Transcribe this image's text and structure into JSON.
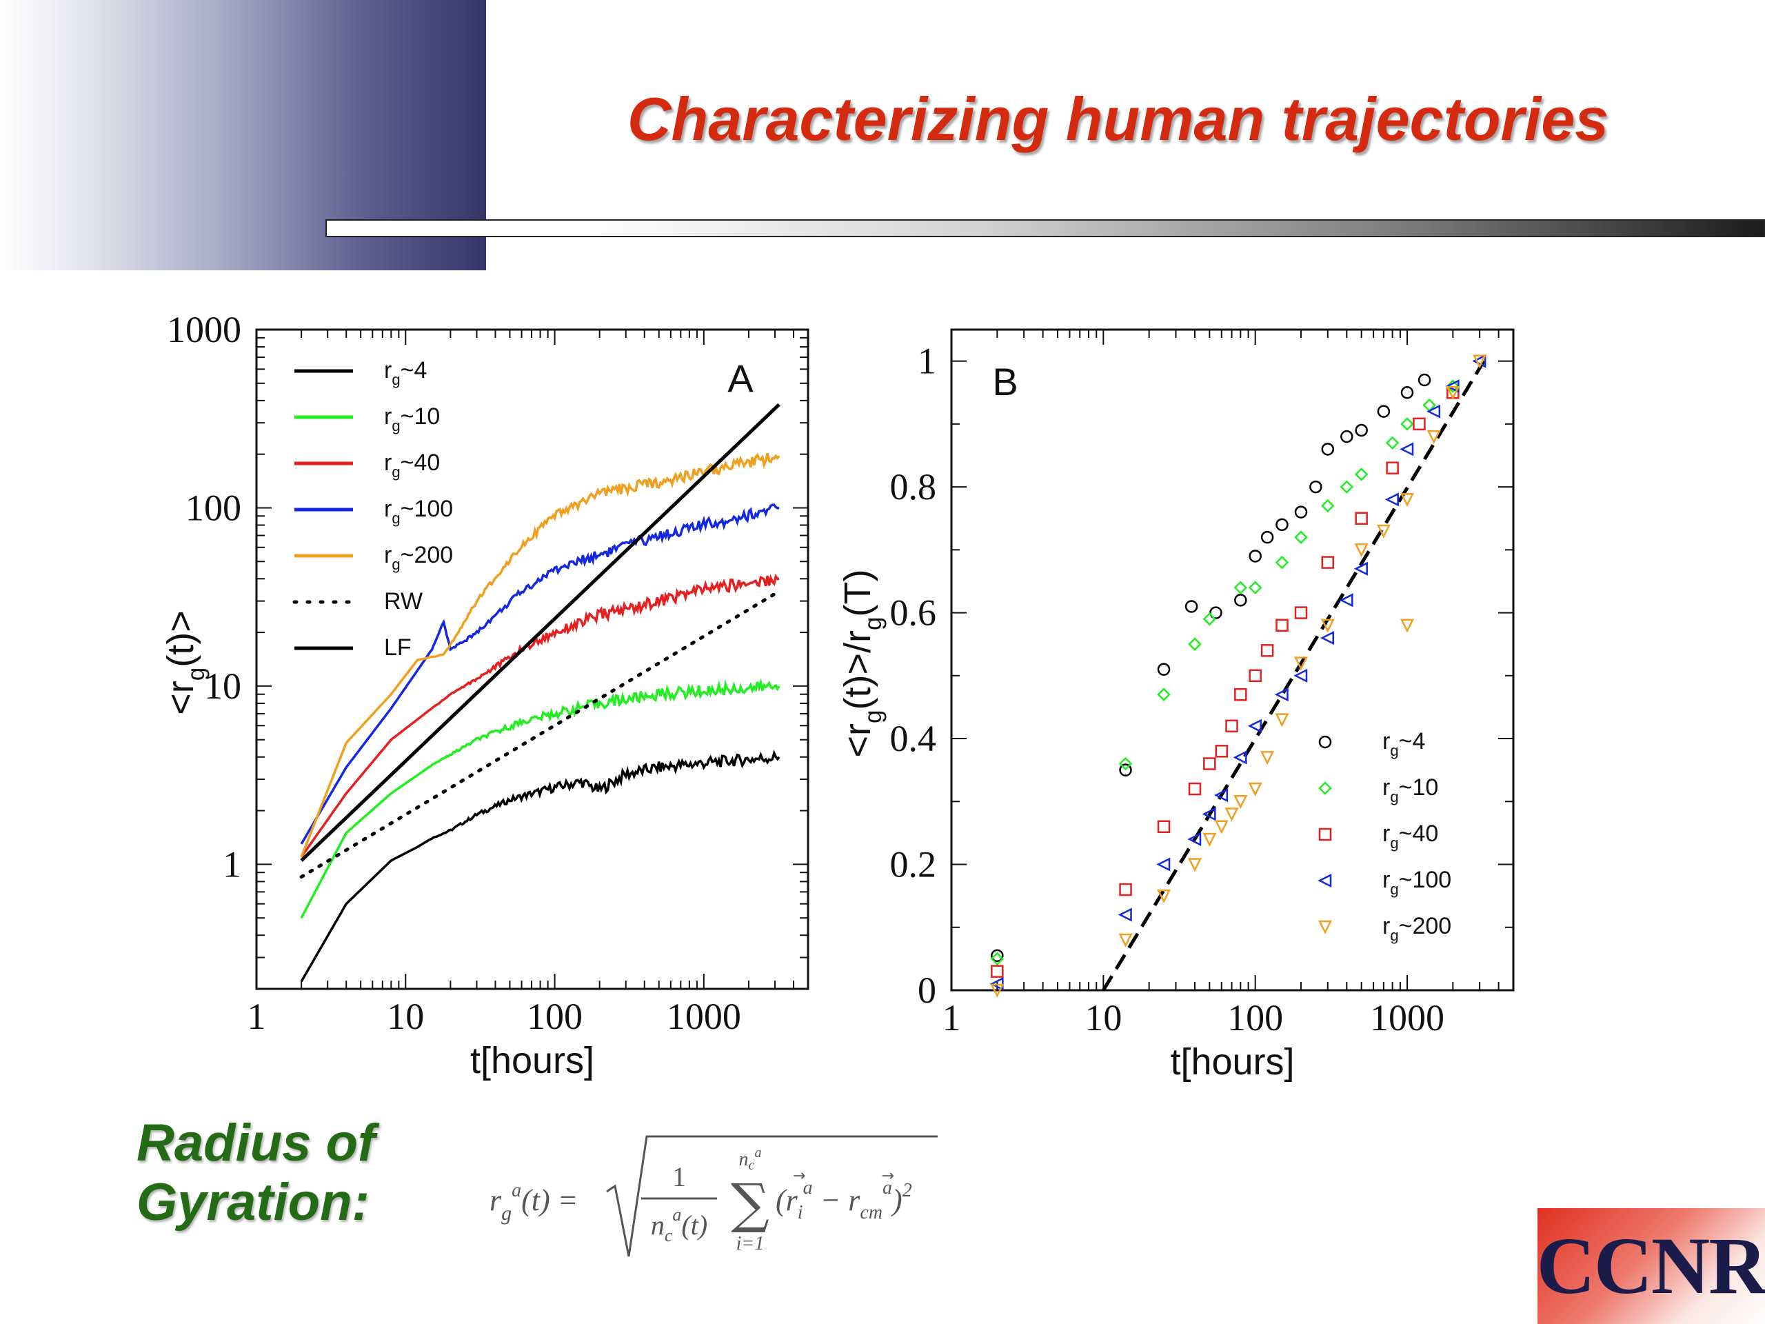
{
  "slide": {
    "title": "Characterizing human trajectories",
    "gyration_label": [
      "Radius of",
      "Gyration:"
    ],
    "logo_text": "CCNR"
  },
  "colors": {
    "title": "#d42a10",
    "gyration": "#246b16",
    "rg4": "#000000",
    "rg10": "#22ee22",
    "rg40": "#e52020",
    "rg100": "#1428e0",
    "rg200": "#f0a020"
  },
  "formula": {
    "lhs": "r_g^a(t) =",
    "fraction_numerator": "1",
    "fraction_denominator": "n_c^a(t)",
    "sum_upper": "n_c^a",
    "sum_lower": "i=1",
    "summand": "(r_i^a − r_cm^a)^2"
  },
  "chart_data": [
    {
      "type": "line",
      "panel_label": "A",
      "xlabel": "t[hours]",
      "ylabel": "<r_g(t)>",
      "xscale": "log",
      "yscale": "log",
      "xlim": [
        1,
        5000
      ],
      "ylim": [
        0.2,
        1000
      ],
      "xticks": [
        1,
        10,
        100,
        1000
      ],
      "xtick_labels": [
        "1",
        "10",
        "100",
        "1000"
      ],
      "yticks": [
        1,
        10,
        100,
        1000
      ],
      "ytick_labels": [
        "1",
        "10",
        "100",
        "1000"
      ],
      "legend_position": "top-left",
      "series": [
        {
          "name": "r_g~4",
          "color": "#000000",
          "style": "noisy",
          "points": [
            [
              2,
              0.22
            ],
            [
              4,
              0.6
            ],
            [
              8,
              1.05
            ],
            [
              12,
              1.25
            ],
            [
              15,
              1.4
            ],
            [
              20,
              1.55
            ],
            [
              30,
              1.9
            ],
            [
              50,
              2.3
            ],
            [
              100,
              2.7
            ],
            [
              150,
              2.9
            ],
            [
              200,
              2.6
            ],
            [
              300,
              3.2
            ],
            [
              500,
              3.5
            ],
            [
              1000,
              3.7
            ],
            [
              3200,
              4
            ]
          ]
        },
        {
          "name": "r_g~10",
          "color": "#22ee22",
          "style": "noisy",
          "points": [
            [
              2,
              0.5
            ],
            [
              4,
              1.5
            ],
            [
              8,
              2.5
            ],
            [
              15,
              3.6
            ],
            [
              30,
              5
            ],
            [
              60,
              6.3
            ],
            [
              100,
              7
            ],
            [
              200,
              8
            ],
            [
              500,
              9
            ],
            [
              1000,
              9.4
            ],
            [
              3200,
              10
            ]
          ]
        },
        {
          "name": "r_g~40",
          "color": "#e52020",
          "style": "noisy",
          "points": [
            [
              2,
              1.1
            ],
            [
              4,
              2.5
            ],
            [
              8,
              5
            ],
            [
              15,
              7.5
            ],
            [
              20,
              9
            ],
            [
              30,
              11
            ],
            [
              60,
              16
            ],
            [
              100,
              20
            ],
            [
              200,
              25
            ],
            [
              500,
              30
            ],
            [
              1000,
              35
            ],
            [
              3200,
              40
            ]
          ]
        },
        {
          "name": "r_g~100",
          "color": "#1428e0",
          "style": "noisy",
          "points": [
            [
              2,
              1.3
            ],
            [
              4,
              3.5
            ],
            [
              8,
              7.5
            ],
            [
              15,
              16
            ],
            [
              18,
              23
            ],
            [
              20,
              16
            ],
            [
              25,
              18
            ],
            [
              30,
              20
            ],
            [
              60,
              34
            ],
            [
              100,
              45
            ],
            [
              200,
              55
            ],
            [
              500,
              70
            ],
            [
              1000,
              80
            ],
            [
              3200,
              100
            ]
          ]
        },
        {
          "name": "r_g~200",
          "color": "#f0a020",
          "style": "noisy",
          "points": [
            [
              2,
              1.1
            ],
            [
              4,
              4.8
            ],
            [
              8,
              9
            ],
            [
              12,
              14
            ],
            [
              18,
              15
            ],
            [
              20,
              17
            ],
            [
              30,
              30
            ],
            [
              60,
              62
            ],
            [
              100,
              90
            ],
            [
              200,
              120
            ],
            [
              500,
              140
            ],
            [
              1000,
              160
            ],
            [
              3200,
              195
            ]
          ]
        },
        {
          "name": "RW",
          "color": "#000000",
          "style": "dotted",
          "points": [
            [
              2,
              0.85
            ],
            [
              3200,
              34
            ]
          ]
        },
        {
          "name": "LF",
          "color": "#000000",
          "style": "solid",
          "points": [
            [
              2,
              1.05
            ],
            [
              3200,
              380
            ]
          ]
        }
      ]
    },
    {
      "type": "scatter",
      "panel_label": "B",
      "xlabel": "t[hours]",
      "ylabel": "<r_g(t)>/r_g(T)",
      "xscale": "log",
      "yscale": "linear",
      "xlim": [
        1,
        5000
      ],
      "ylim": [
        0,
        1.05
      ],
      "xticks": [
        1,
        10,
        100,
        1000
      ],
      "xtick_labels": [
        "1",
        "10",
        "100",
        "1000"
      ],
      "yticks": [
        0,
        0.2,
        0.4,
        0.6,
        0.8,
        1
      ],
      "ytick_labels": [
        "0",
        "0.2",
        "0.4",
        "0.6",
        "0.8",
        "1"
      ],
      "legend_position": "bottom-right",
      "fit_line": {
        "style": "dashed",
        "color": "#000000",
        "points": [
          [
            10,
            0
          ],
          [
            3200,
            1
          ]
        ]
      },
      "series": [
        {
          "name": "r_g~4",
          "color": "#000000",
          "marker": "circle",
          "points": [
            [
              2,
              0.055
            ],
            [
              14,
              0.35
            ],
            [
              25,
              0.51
            ],
            [
              38,
              0.61
            ],
            [
              55,
              0.6
            ],
            [
              80,
              0.62
            ],
            [
              100,
              0.69
            ],
            [
              120,
              0.72
            ],
            [
              150,
              0.74
            ],
            [
              200,
              0.76
            ],
            [
              250,
              0.8
            ],
            [
              300,
              0.86
            ],
            [
              400,
              0.88
            ],
            [
              500,
              0.89
            ],
            [
              700,
              0.92
            ],
            [
              1000,
              0.95
            ],
            [
              1300,
              0.97
            ]
          ]
        },
        {
          "name": "r_g~10",
          "color": "#22ee22",
          "marker": "diamond",
          "points": [
            [
              2,
              0.05
            ],
            [
              14,
              0.36
            ],
            [
              25,
              0.47
            ],
            [
              40,
              0.55
            ],
            [
              50,
              0.59
            ],
            [
              80,
              0.64
            ],
            [
              100,
              0.64
            ],
            [
              150,
              0.68
            ],
            [
              200,
              0.72
            ],
            [
              300,
              0.77
            ],
            [
              400,
              0.8
            ],
            [
              500,
              0.82
            ],
            [
              800,
              0.87
            ],
            [
              1000,
              0.9
            ],
            [
              1400,
              0.93
            ],
            [
              2000,
              0.96
            ]
          ]
        },
        {
          "name": "r_g~40",
          "color": "#e52020",
          "marker": "square",
          "points": [
            [
              2,
              0.03
            ],
            [
              14,
              0.16
            ],
            [
              25,
              0.26
            ],
            [
              40,
              0.32
            ],
            [
              50,
              0.36
            ],
            [
              60,
              0.38
            ],
            [
              70,
              0.42
            ],
            [
              80,
              0.47
            ],
            [
              100,
              0.5
            ],
            [
              120,
              0.54
            ],
            [
              150,
              0.58
            ],
            [
              200,
              0.6
            ],
            [
              300,
              0.68
            ],
            [
              500,
              0.75
            ],
            [
              800,
              0.83
            ],
            [
              1200,
              0.9
            ],
            [
              2000,
              0.95
            ]
          ]
        },
        {
          "name": "r_g~100",
          "color": "#1428e0",
          "marker": "triangle-left",
          "points": [
            [
              2,
              0.01
            ],
            [
              14,
              0.12
            ],
            [
              25,
              0.2
            ],
            [
              40,
              0.24
            ],
            [
              50,
              0.28
            ],
            [
              60,
              0.31
            ],
            [
              80,
              0.37
            ],
            [
              100,
              0.42
            ],
            [
              150,
              0.47
            ],
            [
              200,
              0.5
            ],
            [
              300,
              0.56
            ],
            [
              400,
              0.62
            ],
            [
              500,
              0.67
            ],
            [
              800,
              0.78
            ],
            [
              1000,
              0.86
            ],
            [
              1500,
              0.92
            ],
            [
              2000,
              0.96
            ],
            [
              3000,
              1
            ]
          ]
        },
        {
          "name": "r_g~200",
          "color": "#f0a020",
          "marker": "triangle-down",
          "points": [
            [
              2,
              0.0
            ],
            [
              14,
              0.08
            ],
            [
              25,
              0.15
            ],
            [
              40,
              0.2
            ],
            [
              50,
              0.24
            ],
            [
              60,
              0.26
            ],
            [
              70,
              0.28
            ],
            [
              80,
              0.3
            ],
            [
              100,
              0.32
            ],
            [
              120,
              0.37
            ],
            [
              150,
              0.43
            ],
            [
              200,
              0.52
            ],
            [
              300,
              0.58
            ],
            [
              500,
              0.7
            ],
            [
              700,
              0.73
            ],
            [
              1000,
              0.78
            ],
            [
              1000,
              0.58
            ],
            [
              1500,
              0.88
            ],
            [
              2000,
              0.95
            ],
            [
              3000,
              1
            ]
          ]
        }
      ]
    }
  ]
}
